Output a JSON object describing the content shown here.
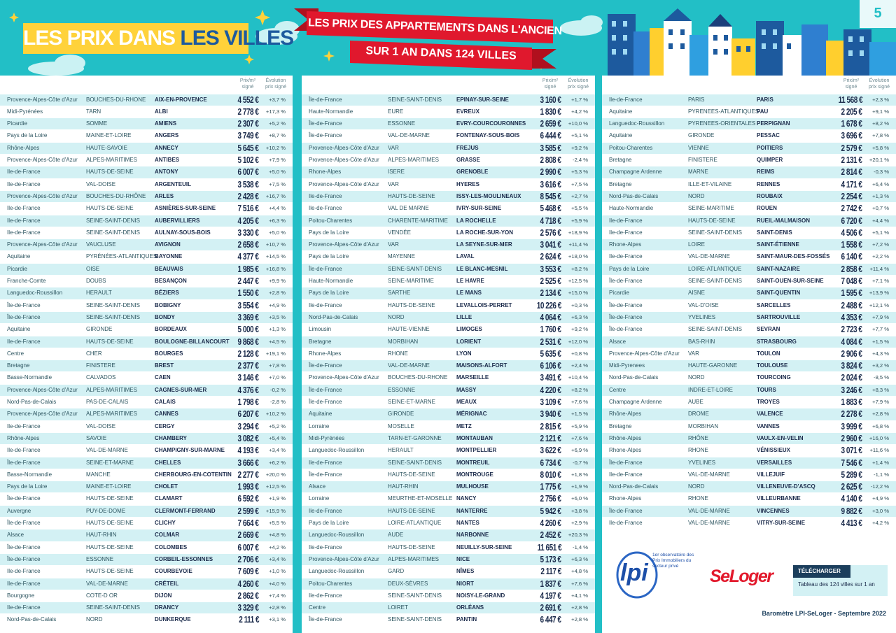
{
  "header": {
    "title_part1": "LES PRIX DANS",
    "title_part2": "LES VILLES",
    "ribbon_line1": "LES PRIX DES APPARTEMENTS DANS L'ANCIEN",
    "ribbon_line2": "SUR 1 AN DANS 124 VILLES",
    "page_number": "5"
  },
  "column_headers": {
    "price": "Prix/m² signé",
    "evolution": "Évolution prix signé"
  },
  "tables": [
    {
      "rows": [
        [
          "Provence-Alpes-Côte d'Azur",
          "BOUCHES-DU-RHONE",
          "AIX-EN-PROVENCE",
          "4 552 €",
          "+3,7 %"
        ],
        [
          "Midi-Pyrénées",
          "TARN",
          "ALBI",
          "2 778 €",
          "+17,3 %"
        ],
        [
          "Picardie",
          "SOMME",
          "AMIENS",
          "2 307 €",
          "+5,2 %"
        ],
        [
          "Pays de la Loire",
          "MAINE-ET-LOIRE",
          "ANGERS",
          "3 749 €",
          "+8,7 %"
        ],
        [
          "Rhône-Alpes",
          "HAUTE-SAVOIE",
          "ANNECY",
          "5 645 €",
          "+10,2 %"
        ],
        [
          "Provence-Alpes-Côte d'Azur",
          "ALPES-MARITIMES",
          "ANTIBES",
          "5 102 €",
          "+7,9 %"
        ],
        [
          "Ile-de-France",
          "HAUTS-DE-SEINE",
          "ANTONY",
          "6 007 €",
          "+5,0 %"
        ],
        [
          "Ile-de-France",
          "VAL-DOISE",
          "ARGENTEUIL",
          "3 538 €",
          "+7,5 %"
        ],
        [
          "Provence-Alpes-Côte d'Azur",
          "BOUCHES-DU-RHÔNE",
          "ARLES",
          "2 428 €",
          "+16,7 %"
        ],
        [
          "Ile-de-France",
          "HAUTS-DE-SEINE",
          "ASNIÈRES-SUR-SEINE",
          "7 516 €",
          "+4,4 %"
        ],
        [
          "Ile-de-France",
          "SEINE-SAINT-DENIS",
          "AUBERVILLIERS",
          "4 205 €",
          "+6,3 %"
        ],
        [
          "Ile-de-France",
          "SEINE-SAINT-DENIS",
          "AULNAY-SOUS-BOIS",
          "3 330 €",
          "+5,0 %"
        ],
        [
          "Provence-Alpes-Côte d'Azur",
          "VAUCLUSE",
          "AVIGNON",
          "2 658 €",
          "+10,7 %"
        ],
        [
          "Aquitaine",
          "PYRÉNÉES-ATLANTIQUES",
          "BAYONNE",
          "4 377 €",
          "+14,5 %"
        ],
        [
          "Picardie",
          "OISE",
          "BEAUVAIS",
          "1 985 €",
          "+16,8 %"
        ],
        [
          "Franche-Comte",
          "DOUBS",
          "BESANÇON",
          "2 447 €",
          "+9,9 %"
        ],
        [
          "Languedoc-Roussillon",
          "HERAULT",
          "BÉZIERS",
          "1 550 €",
          "+2,8 %"
        ],
        [
          "Île-de-France",
          "SEINE-SAINT-DENIS",
          "BOBIGNY",
          "3 554 €",
          "+4,9 %"
        ],
        [
          "Île-de-France",
          "SEINE-SAINT-DENIS",
          "BONDY",
          "3 369 €",
          "+3,5 %"
        ],
        [
          "Aquitaine",
          "GIRONDE",
          "BORDEAUX",
          "5 000 €",
          "+1,3 %"
        ],
        [
          "Ile-de-France",
          "HAUTS-DE-SEINE",
          "BOULOGNE-BILLANCOURT",
          "9 868 €",
          "+4,5 %"
        ],
        [
          "Centre",
          "CHER",
          "BOURGES",
          "2 128 €",
          "+19,1 %"
        ],
        [
          "Bretagne",
          "FINISTERE",
          "BREST",
          "2 377 €",
          "+7,8 %"
        ],
        [
          "Basse-Normandie",
          "CALVADOS",
          "CAEN",
          "3 146 €",
          "+7,0 %"
        ],
        [
          "Provence-Alpes-Côte d'Azur",
          "ALPES-MARITIMES",
          "CAGNES-SUR-MER",
          "4 376 €",
          "-0,2 %"
        ],
        [
          "Nord-Pas-de-Calais",
          "PAS-DE-CALAIS",
          "CALAIS",
          "1 798 €",
          "-2,8 %"
        ],
        [
          "Provence-Alpes-Côte d'Azur",
          "ALPES-MARITIMES",
          "CANNES",
          "6 207 €",
          "+10,2 %"
        ],
        [
          "Ile-de-France",
          "VAL-DOISE",
          "CERGY",
          "3 294 €",
          "+5,2 %"
        ],
        [
          "Rhône-Alpes",
          "SAVOIE",
          "CHAMBERY",
          "3 082 €",
          "+5,4 %"
        ],
        [
          "Ile-de-France",
          "VAL-DE-MARNE",
          "CHAMPIGNY-SUR-MARNE",
          "4 193 €",
          "+3,4 %"
        ],
        [
          "Île-de-France",
          "SEINE-ET-MARNE",
          "CHELLES",
          "3 666 €",
          "+6,2 %"
        ],
        [
          "Basse-Normandie",
          "MANCHE",
          "CHERBOURG-EN-COTENTIN",
          "2 277 €",
          "+20,0 %"
        ],
        [
          "Pays de la Loire",
          "MAINE-ET-LOIRE",
          "CHOLET",
          "1 993 €",
          "+12,5 %"
        ],
        [
          "Île-de-France",
          "HAUTS-DE-SEINE",
          "CLAMART",
          "6 592 €",
          "+1,9 %"
        ],
        [
          "Auvergne",
          "PUY-DE-DOME",
          "CLERMONT-FERRAND",
          "2 599 €",
          "+15,9 %"
        ],
        [
          "Île-de-France",
          "HAUTS-DE-SEINE",
          "CLICHY",
          "7 664 €",
          "+5,5 %"
        ],
        [
          "Alsace",
          "HAUT-RHIN",
          "COLMAR",
          "2 669 €",
          "+4,8 %"
        ],
        [
          "Île-de-France",
          "HAUTS-DE-SEINE",
          "COLOMBES",
          "6 007 €",
          "+4,2 %"
        ],
        [
          "Île-de-France",
          "ESSONNE",
          "CORBEIL-ESSONNES",
          "2 706 €",
          "+3,4 %"
        ],
        [
          "Ile-de-France",
          "HAUTS-DE-SEINE",
          "COURBEVOIE",
          "7 609 €",
          "+1,0 %"
        ],
        [
          "Ile-de-France",
          "VAL-DE-MARNE",
          "CRÉTEIL",
          "4 260 €",
          "+4,0 %"
        ],
        [
          "Bourgogne",
          "COTE-D OR",
          "DIJON",
          "2 862 €",
          "+7,4 %"
        ],
        [
          "Ile-de-France",
          "SEINE-SAINT-DENIS",
          "DRANCY",
          "3 329 €",
          "+2,8 %"
        ],
        [
          "Nord-Pas-de-Calais",
          "NORD",
          "DUNKERQUE",
          "2 111 €",
          "+3,1 %"
        ]
      ]
    },
    {
      "rows": [
        [
          "Île-de-France",
          "SEINE-SAINT-DENIS",
          "EPINAY-SUR-SEINE",
          "3 160 €",
          "+1,7 %"
        ],
        [
          "Haute-Normandie",
          "EURE",
          "EVREUX",
          "1 830 €",
          "+4,2 %"
        ],
        [
          "Île-de-France",
          "ESSONNE",
          "EVRY-COURCOURONNES",
          "2 659 €",
          "+10,0 %"
        ],
        [
          "Île-de-France",
          "VAL-DE-MARNE",
          "FONTENAY-SOUS-BOIS",
          "6 444 €",
          "+5,1 %"
        ],
        [
          "Provence-Alpes-Côte d'Azur",
          "VAR",
          "FREJUS",
          "3 585 €",
          "+9,2 %"
        ],
        [
          "Provence-Alpes-Côte d'Azur",
          "ALPES-MARITIMES",
          "GRASSE",
          "2 808 €",
          "-2,4 %"
        ],
        [
          "Rhone-Alpes",
          "ISERE",
          "GRENOBLE",
          "2 990 €",
          "+5,3 %"
        ],
        [
          "Provence-Alpes-Côte d'Azur",
          "VAR",
          "HYERES",
          "3 616 €",
          "+7,5 %"
        ],
        [
          "Ile-de-France",
          "HAUTS-DE-SEINE",
          "ISSY-LES-MOULINEAUX",
          "8 545 €",
          "+2,7 %"
        ],
        [
          "Ile-de-France",
          "VAL DE MARNE",
          "IVRY-SUR-SEINE",
          "5 468 €",
          "+5,5 %"
        ],
        [
          "Poitou-Charentes",
          "CHARENTE-MARITIME",
          "LA ROCHELLE",
          "4 718 €",
          "+5,9 %"
        ],
        [
          "Pays de la Loire",
          "VENDÉE",
          "LA ROCHE-SUR-YON",
          "2 576 €",
          "+18,9 %"
        ],
        [
          "Provence-Alpes-Côte d'Azur",
          "VAR",
          "LA SEYNE-SUR-MER",
          "3 041 €",
          "+11,4 %"
        ],
        [
          "Pays de la Loire",
          "MAYENNE",
          "LAVAL",
          "2 624 €",
          "+18,0 %"
        ],
        [
          "Île-de-France",
          "SEINE-SAINT-DENIS",
          "LE BLANC-MESNIL",
          "3 553 €",
          "+8,2 %"
        ],
        [
          "Haute-Normandie",
          "SEINE-MARITIME",
          "LE HAVRE",
          "2 525 €",
          "+12,5 %"
        ],
        [
          "Pays de la Loire",
          "SARTHE",
          "LE MANS",
          "2 134 €",
          "+15,0 %"
        ],
        [
          "Ile-de-France",
          "HAUTS-DE-SEINE",
          "LEVALLOIS-PERRET",
          "10 226 €",
          "+0,3 %"
        ],
        [
          "Nord-Pas-de-Calais",
          "NORD",
          "LILLE",
          "4 064 €",
          "+6,3 %"
        ],
        [
          "Limousin",
          "HAUTE-VIENNE",
          "LIMOGES",
          "1 760 €",
          "+9,2 %"
        ],
        [
          "Bretagne",
          "MORBIHAN",
          "LORIENT",
          "2 531 €",
          "+12,0 %"
        ],
        [
          "Rhone-Alpes",
          "RHONE",
          "LYON",
          "5 635 €",
          "+0,8 %"
        ],
        [
          "Île-de-France",
          "VAL-DE-MARNE",
          "MAISONS-ALFORT",
          "6 106 €",
          "+2,4 %"
        ],
        [
          "Provence-Alpes-Côte d'Azur",
          "BOUCHES-DU-RHONE",
          "MARSEILLE",
          "3 491 €",
          "+10,4 %"
        ],
        [
          "Île-de-France",
          "ESSONNE",
          "MASSY",
          "4 220 €",
          "+8,2 %"
        ],
        [
          "Île-de-France",
          "SEINE-ET-MARNE",
          "MEAUX",
          "3 109 €",
          "+7,6 %"
        ],
        [
          "Aquitaine",
          "GIRONDE",
          "MÉRIGNAC",
          "3 940 €",
          "+1,5 %"
        ],
        [
          "Lorraine",
          "MOSELLE",
          "METZ",
          "2 815 €",
          "+5,9 %"
        ],
        [
          "Midi-Pyrénées",
          "TARN-ET-GARONNE",
          "MONTAUBAN",
          "2 121 €",
          "+7,6 %"
        ],
        [
          "Languedoc-Roussillon",
          "HERAULT",
          "MONTPELLIER",
          "3 622 €",
          "+6,9 %"
        ],
        [
          "Ile-de-France",
          "SEINE-SAINT-DENIS",
          "MONTREUIL",
          "6 734 €",
          "-0,7 %"
        ],
        [
          "Île-de-France",
          "HAUTS-DE-SEINE",
          "MONTROUGE",
          "8 010 €",
          "+1,8 %"
        ],
        [
          "Alsace",
          "HAUT-RHIN",
          "MULHOUSE",
          "1 775 €",
          "+1,9 %"
        ],
        [
          "Lorraine",
          "MEURTHE-ET-MOSELLE",
          "NANCY",
          "2 756 €",
          "+6,0 %"
        ],
        [
          "Ile-de-France",
          "HAUTS-DE-SEINE",
          "NANTERRE",
          "5 942 €",
          "+3,8 %"
        ],
        [
          "Pays de la Loire",
          "LOIRE-ATLANTIQUE",
          "NANTES",
          "4 260 €",
          "+2,9 %"
        ],
        [
          "Languedoc-Roussillon",
          "AUDE",
          "NARBONNE",
          "2 452 €",
          "+20,3 %"
        ],
        [
          "Ile-de-France",
          "HAUTS-DE-SEINE",
          "NEUILLY-SUR-SEINE",
          "11 651 €",
          "-1,4 %"
        ],
        [
          "Provence-Alpes-Côte d'Azur",
          "ALPES-MARITIMES",
          "NICE",
          "5 173 €",
          "+6,3 %"
        ],
        [
          "Languedoc-Roussillon",
          "GARD",
          "NÎMES",
          "2 117 €",
          "+4,8 %"
        ],
        [
          "Poitou-Charentes",
          "DEUX-SÈVRES",
          "NIORT",
          "1 837 €",
          "+7,6 %"
        ],
        [
          "Ile-de-France",
          "SEINE-SAINT-DENIS",
          "NOISY-LE-GRAND",
          "4 197 €",
          "+4,1 %"
        ],
        [
          "Centre",
          "LOIRET",
          "ORLÉANS",
          "2 691 €",
          "+2,8 %"
        ],
        [
          "Île-de-France",
          "SEINE-SAINT-DENIS",
          "PANTIN",
          "6 447 €",
          "+2,8 %"
        ]
      ]
    },
    {
      "rows": [
        [
          "Ile-de-France",
          "PARIS",
          "PARIS",
          "11 568 €",
          "+2,3 %"
        ],
        [
          "Aquitaine",
          "PYRENEES-ATLANTIQUES",
          "PAU",
          "2 205 €",
          "+9,1 %"
        ],
        [
          "Languedoc-Roussillon",
          "PYRENEES-ORIENTALES",
          "PERPIGNAN",
          "1 678 €",
          "+8,2 %"
        ],
        [
          "Aquitaine",
          "GIRONDE",
          "PESSAC",
          "3 696 €",
          "+7,8 %"
        ],
        [
          "Poitou-Charentes",
          "VIENNE",
          "POITIERS",
          "2 579 €",
          "+5,8 %"
        ],
        [
          "Bretagne",
          "FINISTERE",
          "QUIMPER",
          "2 131 €",
          "+20,1 %"
        ],
        [
          "Champagne Ardenne",
          "MARNE",
          "REIMS",
          "2 814 €",
          "-0,3 %"
        ],
        [
          "Bretagne",
          "ILLE-ET-VILAINE",
          "RENNES",
          "4 171 €",
          "+6,4 %"
        ],
        [
          "Nord-Pas-de-Calais",
          "NORD",
          "ROUBAIX",
          "2 254 €",
          "+1,3 %"
        ],
        [
          "Haute-Normandie",
          "SEINE-MARITIME",
          "ROUEN",
          "2 742 €",
          "+0,7 %"
        ],
        [
          "Ile-de-France",
          "HAUTS-DE-SEINE",
          "RUEIL-MALMAISON",
          "6 720 €",
          "+4,4 %"
        ],
        [
          "Ile-de-France",
          "SEINE-SAINT-DENIS",
          "SAINT-DENIS",
          "4 506 €",
          "+5,1 %"
        ],
        [
          "Rhone-Alpes",
          "LOIRE",
          "SAINT-ÉTIENNE",
          "1 558 €",
          "+7,2 %"
        ],
        [
          "Ile-de-France",
          "VAL-DE-MARNE",
          "SAINT-MAUR-DES-FOSSÉS",
          "6 140 €",
          "+2,2 %"
        ],
        [
          "Pays de la Loire",
          "LOIRE-ATLANTIQUE",
          "SAINT-NAZAIRE",
          "2 858 €",
          "+11,4 %"
        ],
        [
          "Île-de-France",
          "SEINE-SAINT-DENIS",
          "SAINT-OUEN-SUR-SEINE",
          "7 048 €",
          "+7,1 %"
        ],
        [
          "Picardie",
          "AISNE",
          "SAINT-QUENTIN",
          "1 595 €",
          "+13,9 %"
        ],
        [
          "Île-de-France",
          "VAL-D'OISE",
          "SARCELLES",
          "2 488 €",
          "+12,1 %"
        ],
        [
          "Île-de-France",
          "YVELINES",
          "SARTROUVILLE",
          "4 353 €",
          "+7,9 %"
        ],
        [
          "Île-de-France",
          "SEINE-SAINT-DENIS",
          "SEVRAN",
          "2 723 €",
          "+7,7 %"
        ],
        [
          "Alsace",
          "BAS-RHIN",
          "STRASBOURG",
          "4 084 €",
          "+1,5 %"
        ],
        [
          "Provence-Alpes-Côte d'Azur",
          "VAR",
          "TOULON",
          "2 906 €",
          "+4,3 %"
        ],
        [
          "Midi-Pyrenees",
          "HAUTE-GARONNE",
          "TOULOUSE",
          "3 824 €",
          "+3,2 %"
        ],
        [
          "Nord-Pas-de-Calais",
          "NORD",
          "TOURCOING",
          "2 024 €",
          "-8,5 %"
        ],
        [
          "Centre",
          "INDRE-ET-LOIRE",
          "TOURS",
          "3 246 €",
          "+8,3 %"
        ],
        [
          "Champagne Ardenne",
          "AUBE",
          "TROYES",
          "1 883 €",
          "+7,9 %"
        ],
        [
          "Rhône-Alpes",
          "DROME",
          "VALENCE",
          "2 278 €",
          "+2,8 %"
        ],
        [
          "Bretagne",
          "MORBIHAN",
          "VANNES",
          "3 999 €",
          "+6,8 %"
        ],
        [
          "Rhône-Alpes",
          "RHÔNE",
          "VAULX-EN-VELIN",
          "2 960 €",
          "+16,0 %"
        ],
        [
          "Rhone-Alpes",
          "RHONE",
          "VÉNISSIEUX",
          "3 071 €",
          "+11,6 %"
        ],
        [
          "Île-de-France",
          "YVELINES",
          "VERSAILLES",
          "7 546 €",
          "+1,4 %"
        ],
        [
          "Ile-de-France",
          "VAL-DE-MARNE",
          "VILLEJUIF",
          "5 289 €",
          "-1,1 %"
        ],
        [
          "Nord-Pas-de-Calais",
          "NORD",
          "VILLENEUVE-D'ASCQ",
          "2 625 €",
          "-12,2 %"
        ],
        [
          "Rhone-Alpes",
          "RHONE",
          "VILLEURBANNE",
          "4 140 €",
          "+4,9 %"
        ],
        [
          "Île-de-France",
          "VAL-DE-MARNE",
          "VINCENNES",
          "9 882 €",
          "+3,0 %"
        ],
        [
          "Ile-de-France",
          "VAL-DE-MARNE",
          "VITRY-SUR-SEINE",
          "4 413 €",
          "+4,2 %"
        ]
      ]
    }
  ],
  "footer": {
    "lpi_logo": "lpi",
    "lpi_tagline": "1er observatoire des Prix Immobiliers du secteur privé",
    "seloger_logo": "SeLoger",
    "download_label": "TÉLÉCHARGER",
    "download_link": "Tableau des 124 villes sur 1 an",
    "source": "Baromètre LPI-SeLoger - Septembre 2022"
  }
}
